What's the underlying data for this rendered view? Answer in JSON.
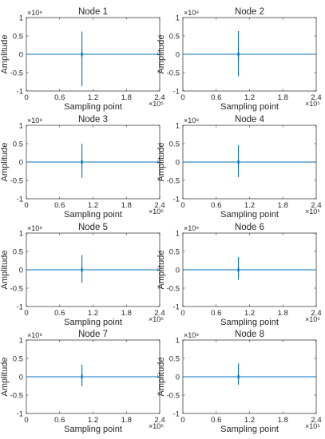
{
  "chart_data": [
    {
      "type": "line",
      "title": "Node 1",
      "xlabel": "Sampling point",
      "ylabel": "Amplitude",
      "x_exponent": "×10⁵",
      "y_exponent": "×10⁹",
      "xlim": [
        0,
        2.4
      ],
      "ylim": [
        -1,
        1
      ],
      "xticks": [
        0,
        0.6,
        1.2,
        1.8,
        2.4
      ],
      "xtick_labels": [
        "0",
        "0.6",
        "1.2",
        "1.8",
        "2.4"
      ],
      "yticks": [
        -1,
        -0.5,
        0,
        0.5,
        1
      ],
      "ytick_labels": [
        "-1",
        "-0.5",
        "0",
        "0.5",
        "1"
      ],
      "color": "#0072BD",
      "spike": {
        "x": 1.0,
        "y_max": 0.62,
        "y_min": -0.87
      }
    },
    {
      "type": "line",
      "title": "Node 2",
      "xlabel": "Sampling point",
      "ylabel": "Amplitude",
      "x_exponent": "×10⁵",
      "y_exponent": "×10⁹",
      "xlim": [
        0,
        2.4
      ],
      "ylim": [
        -1,
        1
      ],
      "xticks": [
        0,
        0.6,
        1.2,
        1.8,
        2.4
      ],
      "xtick_labels": [
        "0",
        "0.6",
        "1.2",
        "1.8",
        "2.4"
      ],
      "yticks": [
        -1,
        -0.5,
        0,
        0.5,
        1
      ],
      "ytick_labels": [
        "-1",
        "-0.5",
        "0",
        "0.5",
        "1"
      ],
      "color": "#0072BD",
      "spike": {
        "x": 1.0,
        "y_max": 0.63,
        "y_min": -0.6
      }
    },
    {
      "type": "line",
      "title": "Node 3",
      "xlabel": "Sampling point",
      "ylabel": "Amplitude",
      "x_exponent": "×10⁵",
      "y_exponent": "×10⁹",
      "xlim": [
        0,
        2.4
      ],
      "ylim": [
        -1,
        1
      ],
      "xticks": [
        0,
        0.6,
        1.2,
        1.8,
        2.4
      ],
      "xtick_labels": [
        "0",
        "0.6",
        "1.2",
        "1.8",
        "2.4"
      ],
      "yticks": [
        -1,
        -0.5,
        0,
        0.5,
        1
      ],
      "ytick_labels": [
        "-1",
        "-0.5",
        "0",
        "0.5",
        "1"
      ],
      "color": "#0072BD",
      "spike": {
        "x": 1.0,
        "y_max": 0.5,
        "y_min": -0.43
      }
    },
    {
      "type": "line",
      "title": "Node 4",
      "xlabel": "Sampling point",
      "ylabel": "Amplitude",
      "x_exponent": "×10⁵",
      "y_exponent": "×10⁹",
      "xlim": [
        0,
        2.4
      ],
      "ylim": [
        -1,
        1
      ],
      "xticks": [
        0,
        0.6,
        1.2,
        1.8,
        2.4
      ],
      "xtick_labels": [
        "0",
        "0.6",
        "1.2",
        "1.8",
        "2.4"
      ],
      "yticks": [
        -1,
        -0.5,
        0,
        0.5,
        1
      ],
      "ytick_labels": [
        "-1",
        "-0.5",
        "0",
        "0.5",
        "1"
      ],
      "color": "#0072BD",
      "spike": {
        "x": 1.0,
        "y_max": 0.46,
        "y_min": -0.41
      }
    },
    {
      "type": "line",
      "title": "Node 5",
      "xlabel": "Sampling point",
      "ylabel": "Amplitude",
      "x_exponent": "×10⁵",
      "y_exponent": "×10⁹",
      "xlim": [
        0,
        2.4
      ],
      "ylim": [
        -1,
        1
      ],
      "xticks": [
        0,
        0.6,
        1.2,
        1.8,
        2.4
      ],
      "xtick_labels": [
        "0",
        "0.6",
        "1.2",
        "1.8",
        "2.4"
      ],
      "yticks": [
        -1,
        -0.5,
        0,
        0.5,
        1
      ],
      "ytick_labels": [
        "-1",
        "-0.5",
        "0",
        "0.5",
        "1"
      ],
      "color": "#0072BD",
      "spike": {
        "x": 1.0,
        "y_max": 0.4,
        "y_min": -0.36
      }
    },
    {
      "type": "line",
      "title": "Node 6",
      "xlabel": "Sampling point",
      "ylabel": "Amplitude",
      "x_exponent": "×10⁵",
      "y_exponent": "×10⁹",
      "xlim": [
        0,
        2.4
      ],
      "ylim": [
        -1,
        1
      ],
      "xticks": [
        0,
        0.6,
        1.2,
        1.8,
        2.4
      ],
      "xtick_labels": [
        "0",
        "0.6",
        "1.2",
        "1.8",
        "2.4"
      ],
      "yticks": [
        -1,
        -0.5,
        0,
        0.5,
        1
      ],
      "ytick_labels": [
        "-1",
        "-0.5",
        "0",
        "0.5",
        "1"
      ],
      "color": "#0072BD",
      "spike": {
        "x": 1.0,
        "y_max": 0.35,
        "y_min": -0.27
      }
    },
    {
      "type": "line",
      "title": "Node 7",
      "xlabel": "Sampling point",
      "ylabel": "Amplitude",
      "x_exponent": "×10⁵",
      "y_exponent": "×10⁹",
      "xlim": [
        0,
        2.4
      ],
      "ylim": [
        -1,
        1
      ],
      "xticks": [
        0,
        0.6,
        1.2,
        1.8,
        2.4
      ],
      "xtick_labels": [
        "0",
        "0.6",
        "1.2",
        "1.8",
        "2.4"
      ],
      "yticks": [
        -1,
        -0.5,
        0,
        0.5,
        1
      ],
      "ytick_labels": [
        "-1",
        "-0.5",
        "0",
        "0.5",
        "1"
      ],
      "color": "#0072BD",
      "spike": {
        "x": 1.0,
        "y_max": 0.33,
        "y_min": -0.26
      }
    },
    {
      "type": "line",
      "title": "Node 8",
      "xlabel": "Sampling point",
      "ylabel": "Amplitude",
      "x_exponent": "×10⁵",
      "y_exponent": "×10⁹",
      "xlim": [
        0,
        2.4
      ],
      "ylim": [
        -1,
        1
      ],
      "xticks": [
        0,
        0.6,
        1.2,
        1.8,
        2.4
      ],
      "xtick_labels": [
        "0",
        "0.6",
        "1.2",
        "1.8",
        "2.4"
      ],
      "yticks": [
        -1,
        -0.5,
        0,
        0.5,
        1
      ],
      "ytick_labels": [
        "-1",
        "-0.5",
        "0",
        "0.5",
        "1"
      ],
      "color": "#0072BD",
      "spike": {
        "x": 1.0,
        "y_max": 0.36,
        "y_min": -0.22
      }
    }
  ]
}
